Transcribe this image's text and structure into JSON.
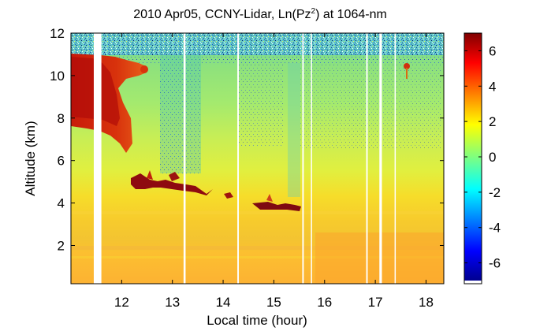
{
  "chart_data": {
    "type": "heatmap",
    "title_main": "2010 Apr05, CCNY-Lidar, Ln(Pz",
    "title_sup": "2",
    "title_tail": ") at 1064-nm",
    "xlabel": "Local time (hour)",
    "ylabel": "Altitude (km)",
    "xlim": [
      11.0,
      18.35
    ],
    "ylim": [
      0.2,
      12.0
    ],
    "xticks": [
      12,
      13,
      14,
      15,
      16,
      17,
      18
    ],
    "yticks": [
      2,
      4,
      6,
      8,
      10,
      12
    ],
    "colorbar": {
      "range": [
        -7,
        7
      ],
      "ticks": [
        6,
        4,
        2,
        0,
        -2,
        -4,
        -6
      ],
      "colormap": "jet"
    },
    "data_gaps_hours": [
      [
        11.45,
        11.6
      ],
      [
        13.22,
        13.26
      ],
      [
        14.28,
        14.31
      ],
      [
        15.56,
        15.59
      ],
      [
        15.73,
        15.75
      ],
      [
        16.82,
        16.85
      ],
      [
        17.08,
        17.13
      ],
      [
        17.38,
        17.4
      ]
    ],
    "features": {
      "cirrus_cloud": {
        "x": [
          11.0,
          12.25
        ],
        "alt_km": [
          7.0,
          11.0
        ],
        "value": 5.8
      },
      "boundary_layer_top_km": 4.3,
      "noise_region_above_km": 11.2
    },
    "profile_samples": [
      {
        "alt_km": 0.5,
        "value": 3.2
      },
      {
        "alt_km": 2.0,
        "value": 3.6
      },
      {
        "alt_km": 3.5,
        "value": 3.2
      },
      {
        "alt_km": 4.3,
        "value": 6.5
      },
      {
        "alt_km": 5.0,
        "value": 2.3
      },
      {
        "alt_km": 6.5,
        "value": 1.6
      },
      {
        "alt_km": 8.0,
        "value": 1.2
      },
      {
        "alt_km": 10.0,
        "value": 0.8
      },
      {
        "alt_km": 11.5,
        "value": 0.0
      }
    ]
  },
  "colors": {
    "axis": "#000000",
    "gap": "#ffffff"
  }
}
